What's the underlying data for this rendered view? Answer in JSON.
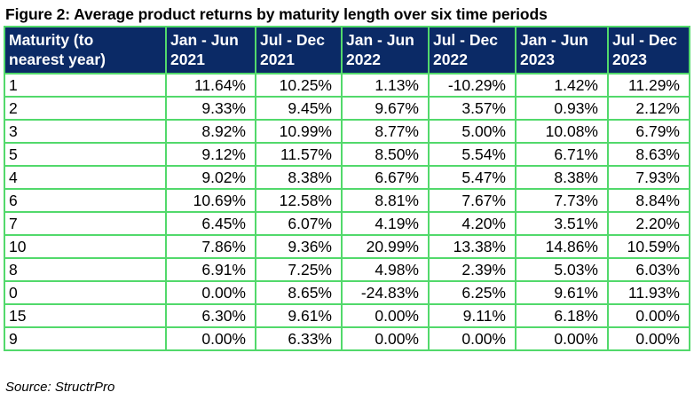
{
  "title": "Figure 2: Average product returns by maturity length over six time periods",
  "columns": [
    [
      "Maturity (to",
      "nearest year)"
    ],
    [
      "Jan - Jun",
      "2021"
    ],
    [
      "Jul - Dec",
      "2021"
    ],
    [
      "Jan - Jun",
      "2022"
    ],
    [
      "Jul - Dec",
      "2022"
    ],
    [
      "Jan - Jun",
      "2023"
    ],
    [
      "Jul - Dec",
      "2023"
    ]
  ],
  "rows": [
    [
      "1",
      "11.64%",
      "10.25%",
      "1.13%",
      "-10.29%",
      "1.42%",
      "11.29%"
    ],
    [
      "2",
      "9.33%",
      "9.45%",
      "9.67%",
      "3.57%",
      "0.93%",
      "2.12%"
    ],
    [
      "3",
      "8.92%",
      "10.99%",
      "8.77%",
      "5.00%",
      "10.08%",
      "6.79%"
    ],
    [
      "5",
      "9.12%",
      "11.57%",
      "8.50%",
      "5.54%",
      "6.71%",
      "8.63%"
    ],
    [
      "4",
      "9.02%",
      "8.38%",
      "6.67%",
      "5.47%",
      "8.38%",
      "7.93%"
    ],
    [
      "6",
      "10.69%",
      "12.58%",
      "8.81%",
      "7.67%",
      "7.73%",
      "8.84%"
    ],
    [
      "7",
      "6.45%",
      "6.07%",
      "4.19%",
      "4.20%",
      "3.51%",
      "2.20%"
    ],
    [
      "10",
      "7.86%",
      "9.36%",
      "20.99%",
      "13.38%",
      "14.86%",
      "10.59%"
    ],
    [
      "8",
      "6.91%",
      "7.25%",
      "4.98%",
      "2.39%",
      "5.03%",
      "6.03%"
    ],
    [
      "0",
      "0.00%",
      "8.65%",
      "-24.83%",
      "6.25%",
      "9.61%",
      "11.93%"
    ],
    [
      "15",
      "6.30%",
      "9.61%",
      "0.00%",
      "9.11%",
      "6.18%",
      "0.00%"
    ],
    [
      "9",
      "0.00%",
      "6.33%",
      "0.00%",
      "0.00%",
      "0.00%",
      "0.00%"
    ]
  ],
  "source": "Source: StructrPro",
  "colors": {
    "header_bg": "#0b2a66",
    "header_text": "#ffffff",
    "border": "#52d96b"
  }
}
